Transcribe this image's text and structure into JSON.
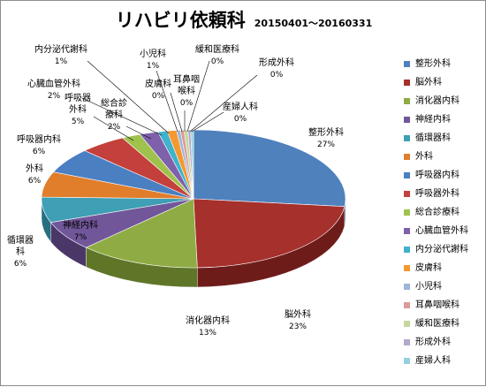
{
  "chart_data": {
    "type": "pie",
    "title": "リハビリ依頼科",
    "subtitle": "20150401～20160331",
    "slices": [
      {
        "name": "整形外科",
        "value": 27,
        "label": "27%",
        "color": "#4f81bd",
        "dark": "#2f5a8c"
      },
      {
        "name": "脳外科",
        "value": 23,
        "label": "23%",
        "color": "#a5302c",
        "dark": "#6e1c1a"
      },
      {
        "name": "消化器内科",
        "value": 13,
        "label": "13%",
        "color": "#8fac44",
        "dark": "#5f7628"
      },
      {
        "name": "神経内科",
        "value": 7,
        "label": "7%",
        "color": "#71579a",
        "dark": "#4a3768"
      },
      {
        "name": "循環器科",
        "value": 6,
        "label": "6%",
        "color": "#3e9fb5",
        "dark": "#266f80"
      },
      {
        "name": "外科",
        "value": 6,
        "label": "6%",
        "color": "#e07e2c",
        "dark": "#a2561a"
      },
      {
        "name": "呼吸器内科",
        "value": 6,
        "label": "6%",
        "color": "#4a7fc2",
        "dark": "#2c5a8c"
      },
      {
        "name": "呼吸器外科",
        "value": 5,
        "label": "5%",
        "color": "#c4403c",
        "dark": "#8c2826"
      },
      {
        "name": "総合診療科",
        "value": 2,
        "label": "2%",
        "color": "#9fc24c",
        "dark": "#6a8a2c"
      },
      {
        "name": "心臓血管外科",
        "value": 2,
        "label": "2%",
        "color": "#7e61aa",
        "dark": "#54407a"
      },
      {
        "name": "内分泌代謝科",
        "value": 1,
        "label": "1%",
        "color": "#40b2cc",
        "dark": "#28808f"
      },
      {
        "name": "皮膚科",
        "value": 1,
        "label": "1%",
        "color": "#f4992f",
        "dark": "#b06a1c"
      },
      {
        "name": "小児科",
        "value": 0.4,
        "label": "0%",
        "color": "#9cb6dc",
        "dark": "#6f88ae"
      },
      {
        "name": "耳鼻咽喉科",
        "value": 0.4,
        "label": "0%",
        "color": "#dc9a98",
        "dark": "#a86e6c"
      },
      {
        "name": "緩和医療科",
        "value": 0.4,
        "label": "0%",
        "color": "#c4d89c",
        "dark": "#92a870"
      },
      {
        "name": "形成外科",
        "value": 0.3,
        "label": "0%",
        "color": "#b4a8cc",
        "dark": "#847a9c"
      },
      {
        "name": "産婦人科",
        "value": 0.3,
        "label": "0%",
        "color": "#96d0e0",
        "dark": "#68a0b0"
      }
    ],
    "legend_position": "right"
  }
}
